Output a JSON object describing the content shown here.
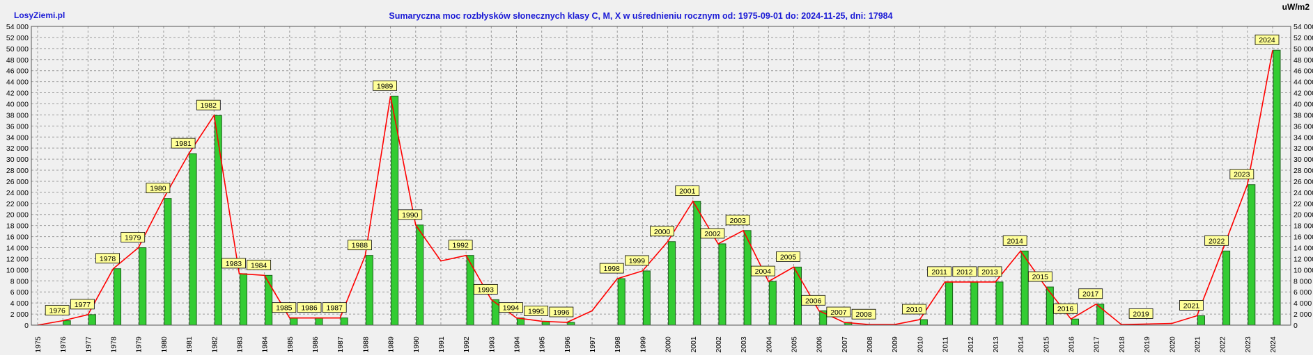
{
  "header": {
    "site": "LosyZiemi.pl",
    "title": "Sumaryczna moc rozbłysków słonecznych klasy C, M, X w uśrednieniu rocznym od: 1975-09-01 do: 2024-11-25, dni: 17984",
    "unit": "uW/m2"
  },
  "colors": {
    "background": "#f0f0f0",
    "title": "#1a1ad6",
    "bar_fill": "#33cc33",
    "bar_stroke": "#1b5e1b",
    "line": "#ff0000",
    "label_fill": "#ffff99",
    "grid": "#9a9a9a"
  },
  "chart_data": {
    "type": "bar",
    "title": "Sumaryczna moc rozbłysków słonecznych klasy C, M, X w uśrednieniu rocznym od: 1975-09-01 do: 2024-11-25, dni: 17984",
    "ylabel": "uW/m2",
    "ylim": [
      0,
      54000
    ],
    "ytick_step": 2000,
    "grid": true,
    "years": [
      "1975",
      "1976",
      "1977",
      "1978",
      "1979",
      "1980",
      "1981",
      "1982",
      "1983",
      "1984",
      "1985",
      "1986",
      "1987",
      "1988",
      "1989",
      "1990",
      "1991",
      "1992",
      "1993",
      "1994",
      "1995",
      "1996",
      "1997",
      "1998",
      "1999",
      "2000",
      "2001",
      "2002",
      "2003",
      "2004",
      "2005",
      "2006",
      "2007",
      "2008",
      "2009",
      "2010",
      "2011",
      "2012",
      "2013",
      "2014",
      "2015",
      "2016",
      "2017",
      "2018",
      "2019",
      "2020",
      "2021",
      "2022",
      "2023",
      "2024"
    ],
    "bar_values": [
      null,
      800,
      1900,
      10200,
      14000,
      22900,
      31000,
      37900,
      9300,
      9000,
      1300,
      1300,
      1300,
      12600,
      41400,
      18100,
      null,
      12600,
      4600,
      1300,
      700,
      500,
      null,
      8400,
      9800,
      15100,
      22400,
      14700,
      17100,
      7900,
      10500,
      2600,
      500,
      null,
      null,
      1000,
      7800,
      7800,
      7800,
      13400,
      6900,
      1100,
      3800,
      null,
      null,
      null,
      1700,
      13400,
      25400,
      49700
    ],
    "line_values": [
      0,
      800,
      1900,
      10200,
      14000,
      22900,
      31000,
      37900,
      9300,
      9000,
      1300,
      1300,
      1300,
      12600,
      41400,
      18100,
      11600,
      12600,
      4600,
      1300,
      700,
      500,
      2600,
      8400,
      9800,
      15100,
      22400,
      14700,
      17100,
      7900,
      10500,
      2600,
      500,
      100,
      100,
      1000,
      7800,
      7800,
      7800,
      13400,
      6900,
      1100,
      3800,
      100,
      200,
      300,
      1700,
      13400,
      25400,
      49700
    ],
    "labeled_years": [
      "1976",
      "1977",
      "1978",
      "1979",
      "1980",
      "1981",
      "1982",
      "1983",
      "1984",
      "1985",
      "1986",
      "1987",
      "1988",
      "1989",
      "1990",
      "1992",
      "1993",
      "1994",
      "1995",
      "1996",
      "1998",
      "1999",
      "2000",
      "2001",
      "2002",
      "2003",
      "2004",
      "2005",
      "2006",
      "2007",
      "2008",
      "2010",
      "2011",
      "2012",
      "2013",
      "2014",
      "2015",
      "2016",
      "2017",
      "2019",
      "2021",
      "2022",
      "2023",
      "2024"
    ]
  }
}
